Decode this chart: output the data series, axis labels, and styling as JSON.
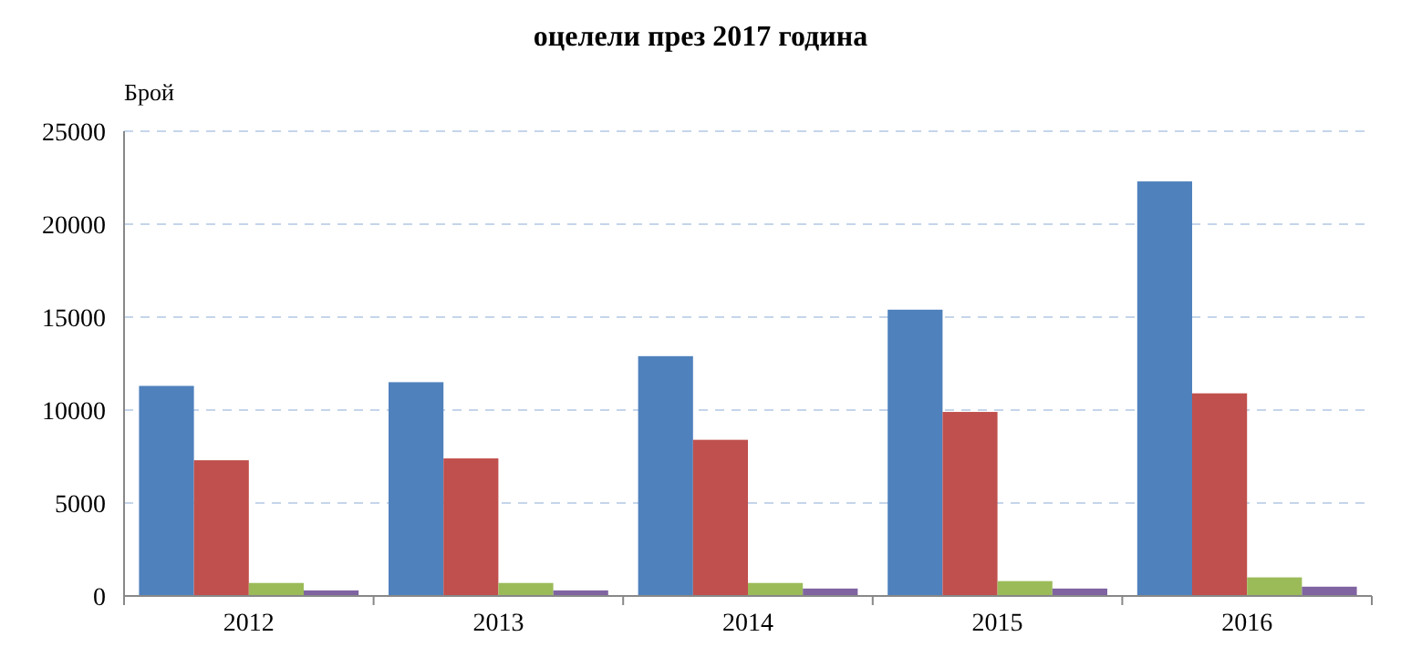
{
  "chart_data": {
    "type": "bar",
    "title": "оцелели през 2017 година",
    "ylabel": "Брой",
    "categories": [
      "2012",
      "2013",
      "2014",
      "2015",
      "2016"
    ],
    "series": [
      {
        "color": "#4f81bd",
        "values": [
          11300,
          11500,
          12900,
          15400,
          22300
        ]
      },
      {
        "color": "#c0504d",
        "values": [
          7300,
          7400,
          8400,
          9900,
          10900
        ]
      },
      {
        "color": "#9bbb59",
        "values": [
          700,
          700,
          700,
          800,
          1000
        ]
      },
      {
        "color": "#8064a2",
        "values": [
          300,
          300,
          400,
          400,
          500
        ]
      }
    ],
    "ylim": [
      0,
      25000
    ],
    "yticks": [
      0,
      5000,
      10000,
      15000,
      20000,
      25000
    ],
    "grid": "y"
  }
}
